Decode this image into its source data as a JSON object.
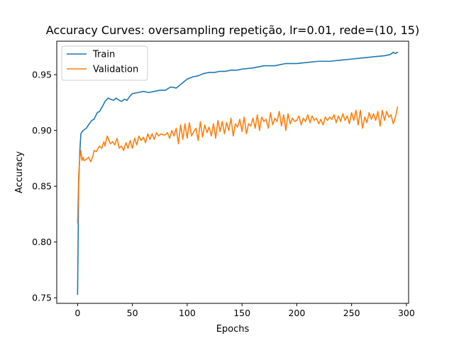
{
  "chart_data": {
    "type": "line",
    "title": "Accuracy Curves: oversampling repetição, lr=0.01, rede=(10, 15)",
    "xlabel": "Epochs",
    "ylabel": "Accuracy",
    "xlim": [
      -19,
      302
    ],
    "ylim": [
      0.745,
      0.98
    ],
    "xticks": [
      0,
      50,
      100,
      150,
      200,
      250,
      300
    ],
    "xtick_labels": [
      "0",
      "50",
      "100",
      "150",
      "200",
      "250",
      "300"
    ],
    "yticks": [
      0.75,
      0.8,
      0.85,
      0.9,
      0.95
    ],
    "ytick_labels": [
      "0.75",
      "0.80",
      "0.85",
      "0.90",
      "0.95"
    ],
    "grid": false,
    "legend": "top-left",
    "colors": {
      "train": "#1f77b4",
      "validation": "#ff7f0e"
    },
    "series": [
      {
        "name": "Train",
        "x": [
          0,
          1,
          2,
          3,
          5,
          8,
          10,
          13,
          15,
          18,
          20,
          23,
          25,
          28,
          30,
          33,
          35,
          38,
          40,
          43,
          45,
          48,
          50,
          55,
          60,
          65,
          70,
          75,
          80,
          85,
          90,
          95,
          100,
          105,
          110,
          115,
          120,
          125,
          130,
          135,
          140,
          145,
          150,
          160,
          170,
          180,
          190,
          200,
          210,
          220,
          230,
          240,
          250,
          260,
          270,
          280,
          285,
          288,
          290,
          292
        ],
        "values": [
          0.753,
          0.85,
          0.88,
          0.897,
          0.9,
          0.902,
          0.905,
          0.909,
          0.91,
          0.916,
          0.917,
          0.922,
          0.926,
          0.929,
          0.928,
          0.927,
          0.929,
          0.927,
          0.926,
          0.928,
          0.927,
          0.931,
          0.933,
          0.934,
          0.935,
          0.934,
          0.935,
          0.936,
          0.936,
          0.939,
          0.938,
          0.942,
          0.946,
          0.948,
          0.949,
          0.951,
          0.952,
          0.952,
          0.953,
          0.953,
          0.954,
          0.954,
          0.955,
          0.956,
          0.958,
          0.958,
          0.96,
          0.96,
          0.961,
          0.962,
          0.962,
          0.963,
          0.964,
          0.965,
          0.966,
          0.967,
          0.968,
          0.97,
          0.969,
          0.97
        ]
      },
      {
        "name": "Validation",
        "x": [
          0,
          1,
          2,
          3,
          4,
          5,
          6,
          8,
          10,
          12,
          14,
          15,
          17,
          20,
          22,
          24,
          25,
          27,
          30,
          32,
          34,
          36,
          38,
          40,
          42,
          44,
          46,
          48,
          50,
          52,
          54,
          56,
          58,
          60,
          62,
          64,
          66,
          68,
          70,
          72,
          74,
          76,
          78,
          80,
          82,
          84,
          86,
          88,
          90,
          92,
          94,
          96,
          98,
          100,
          102,
          104,
          106,
          108,
          110,
          112,
          114,
          116,
          118,
          120,
          122,
          124,
          126,
          128,
          130,
          132,
          134,
          136,
          138,
          140,
          142,
          144,
          146,
          148,
          150,
          152,
          154,
          156,
          158,
          160,
          162,
          164,
          166,
          168,
          170,
          172,
          174,
          176,
          178,
          180,
          182,
          184,
          186,
          188,
          190,
          192,
          194,
          196,
          198,
          200,
          202,
          204,
          206,
          208,
          210,
          212,
          214,
          216,
          218,
          220,
          222,
          224,
          226,
          228,
          230,
          232,
          234,
          236,
          238,
          240,
          242,
          244,
          246,
          248,
          250,
          252,
          254,
          256,
          258,
          260,
          262,
          264,
          266,
          268,
          270,
          272,
          274,
          276,
          278,
          280,
          282,
          284,
          286,
          288,
          290,
          292
        ],
        "values": [
          0.817,
          0.86,
          0.875,
          0.882,
          0.873,
          0.876,
          0.873,
          0.874,
          0.876,
          0.872,
          0.877,
          0.882,
          0.881,
          0.886,
          0.884,
          0.89,
          0.886,
          0.895,
          0.888,
          0.89,
          0.887,
          0.893,
          0.884,
          0.886,
          0.882,
          0.889,
          0.884,
          0.891,
          0.884,
          0.893,
          0.887,
          0.895,
          0.891,
          0.894,
          0.889,
          0.897,
          0.892,
          0.897,
          0.892,
          0.898,
          0.895,
          0.897,
          0.896,
          0.896,
          0.898,
          0.893,
          0.9,
          0.895,
          0.902,
          0.888,
          0.905,
          0.892,
          0.906,
          0.893,
          0.907,
          0.895,
          0.899,
          0.902,
          0.891,
          0.908,
          0.894,
          0.905,
          0.898,
          0.903,
          0.895,
          0.906,
          0.893,
          0.909,
          0.899,
          0.908,
          0.897,
          0.907,
          0.9,
          0.911,
          0.895,
          0.906,
          0.903,
          0.91,
          0.899,
          0.912,
          0.897,
          0.906,
          0.904,
          0.911,
          0.902,
          0.914,
          0.9,
          0.912,
          0.908,
          0.91,
          0.902,
          0.916,
          0.905,
          0.911,
          0.908,
          0.917,
          0.904,
          0.914,
          0.9,
          0.915,
          0.906,
          0.911,
          0.908,
          0.909,
          0.913,
          0.905,
          0.911,
          0.908,
          0.914,
          0.907,
          0.913,
          0.909,
          0.911,
          0.906,
          0.91,
          0.905,
          0.912,
          0.909,
          0.912,
          0.91,
          0.914,
          0.907,
          0.913,
          0.908,
          0.915,
          0.909,
          0.913,
          0.906,
          0.916,
          0.909,
          0.918,
          0.905,
          0.918,
          0.902,
          0.912,
          0.907,
          0.916,
          0.91,
          0.915,
          0.909,
          0.917,
          0.904,
          0.918,
          0.909,
          0.917,
          0.912,
          0.914,
          0.906,
          0.912,
          0.921
        ]
      }
    ]
  }
}
